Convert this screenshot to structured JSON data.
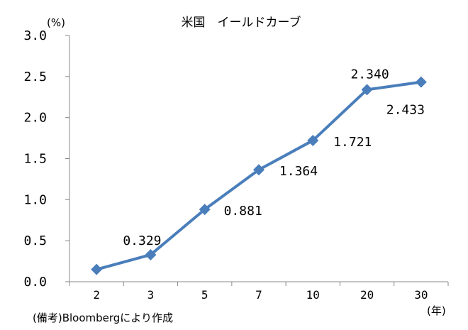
{
  "chart_data": {
    "type": "line",
    "title": "米国　イールドカーブ",
    "y_unit": "(%)",
    "x_unit": "(年)",
    "note": "(備考)Bloombergにより作成",
    "ylim": [
      0,
      3.0
    ],
    "y_ticks": [
      "0.0",
      "0.5",
      "1.0",
      "1.5",
      "2.0",
      "2.5",
      "3.0"
    ],
    "categories": [
      "2",
      "3",
      "5",
      "7",
      "10",
      "20",
      "30"
    ],
    "series": [
      {
        "values": [
          0.15,
          0.329,
          0.881,
          1.364,
          1.721,
          2.34,
          2.433
        ],
        "labels": [
          "",
          "0.329",
          "0.881",
          "1.364",
          "1.721",
          "2.340",
          "2.433"
        ],
        "color": "#4a7ebb"
      }
    ],
    "grid": false,
    "legend": "none"
  }
}
